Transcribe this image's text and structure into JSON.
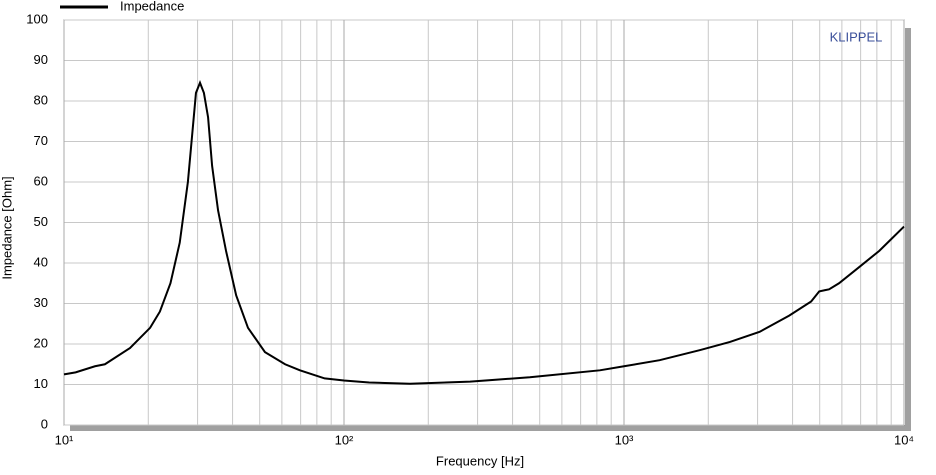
{
  "chart_data": {
    "type": "line",
    "x_label": "Frequency  [Hz]",
    "y_label": "Impedance  [Ohm]",
    "watermark": "KLIPPEL",
    "log_x": true,
    "grid": true,
    "xlim": [
      10,
      10000
    ],
    "xticks": [
      {
        "value": 10,
        "label": "10¹"
      },
      {
        "value": 100,
        "label": "10²"
      },
      {
        "value": 1000,
        "label": "10³"
      },
      {
        "value": 10000,
        "label": "10⁴"
      }
    ],
    "ylim": [
      0,
      100
    ],
    "yticks": [
      0,
      10,
      20,
      30,
      40,
      50,
      60,
      70,
      80,
      90,
      100
    ],
    "x": [
      10,
      11,
      12.9,
      14,
      17.2,
      20.3,
      22,
      24,
      25.9,
      27.7,
      29.6,
      30.6,
      31.6,
      32.7,
      33.8,
      35.5,
      37.9,
      41.2,
      45.4,
      52.2,
      61.6,
      69.6,
      85.3,
      100,
      123,
      172,
      282,
      461,
      820,
      1000,
      1340,
      1870,
      2390,
      3050,
      3890,
      4660,
      4980,
      5230,
      5400,
      5860,
      6920,
      8160,
      10000
    ],
    "series": [
      {
        "name": "Impedance",
        "color": "#000000",
        "values": [
          12.5,
          13,
          14.5,
          15,
          19,
          24,
          28,
          35,
          45,
          60,
          82,
          84.5,
          82,
          76,
          64,
          53,
          43,
          32,
          24,
          18,
          15,
          13.5,
          11.5,
          11,
          10.5,
          10.2,
          10.7,
          11.8,
          13.5,
          14.5,
          16,
          18.5,
          20.5,
          23,
          27,
          30.5,
          33,
          33.3,
          33.5,
          35,
          39,
          43,
          49
        ]
      }
    ]
  }
}
